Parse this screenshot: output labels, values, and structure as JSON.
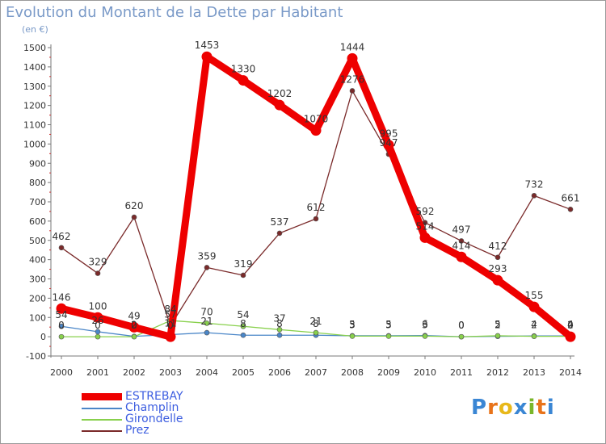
{
  "header": {
    "title": "Evolution du Montant de la Dette par Habitant",
    "subtitle": "(en €)"
  },
  "logo": {
    "chars": [
      "P",
      "r",
      "o",
      "x",
      "i",
      "t",
      "i"
    ],
    "colors": [
      "#3a86d4",
      "#e8731a",
      "#e8b81a",
      "#3a86d4",
      "#7ab62a",
      "#e8731a",
      "#3a86d4"
    ]
  },
  "colors": {
    "axis": "#7a7a7a",
    "grid": "#dddddd",
    "tick_text": "#333333",
    "label_text": "#333333"
  },
  "chart_data": {
    "type": "line",
    "title": "Evolution du Montant de la Dette par Habitant",
    "subtitle": "(en €)",
    "xlabel": "",
    "ylabel": "",
    "x": [
      "2000",
      "2001",
      "2002",
      "2003",
      "2004",
      "2005",
      "2006",
      "2007",
      "2008",
      "2009",
      "2010",
      "2011",
      "2012",
      "2013",
      "2014"
    ],
    "ylim": [
      -100,
      1500
    ],
    "yticks": [
      -100,
      0,
      100,
      200,
      300,
      400,
      500,
      600,
      700,
      800,
      900,
      1000,
      1100,
      1200,
      1300,
      1400,
      1500
    ],
    "grid": false,
    "legend_position": "bottom-left",
    "series": [
      {
        "name": "ESTREBAY",
        "color": "#ee0000",
        "values": [
          146,
          100,
          49,
          0,
          1453,
          1330,
          1202,
          1070,
          1444,
          995,
          514,
          414,
          293,
          155,
          0
        ],
        "labels": [
          "146",
          "100",
          "49",
          "0",
          "1453",
          "1330",
          "1202",
          "1070",
          "1444",
          "995",
          "514",
          "414",
          "293",
          "155",
          "0"
        ],
        "style": "thick"
      },
      {
        "name": "Champlin",
        "color": "#4a86c8",
        "values": [
          54,
          26,
          2,
          11,
          21,
          8,
          8,
          8,
          5,
          5,
          6,
          0,
          2,
          4,
          4
        ],
        "labels": [
          "54",
          "26",
          "2",
          "11",
          "21",
          "8",
          "8",
          "8",
          "5",
          "5",
          "6",
          "0",
          "2",
          "4",
          "4"
        ],
        "style": "thin"
      },
      {
        "name": "Girondelle",
        "color": "#88d04c",
        "values": [
          0,
          0,
          0,
          84,
          70,
          54,
          37,
          21,
          3,
          3,
          3,
          0,
          5,
          2,
          2
        ],
        "labels": [
          "0",
          "0",
          "0",
          "84",
          "70",
          "54",
          "37",
          "21",
          "3",
          "3",
          "3",
          "0",
          "5",
          "2",
          "2"
        ],
        "style": "thin"
      },
      {
        "name": "Prez",
        "color": "#7a2a2a",
        "values": [
          462,
          329,
          620,
          57,
          359,
          319,
          537,
          612,
          1276,
          947,
          592,
          497,
          412,
          732,
          661
        ],
        "labels": [
          "462",
          "329",
          "620",
          "57",
          "359",
          "319",
          "537",
          "612",
          "1276",
          "947",
          "592",
          "497",
          "412",
          "732",
          "661"
        ],
        "style": "thin"
      }
    ]
  }
}
